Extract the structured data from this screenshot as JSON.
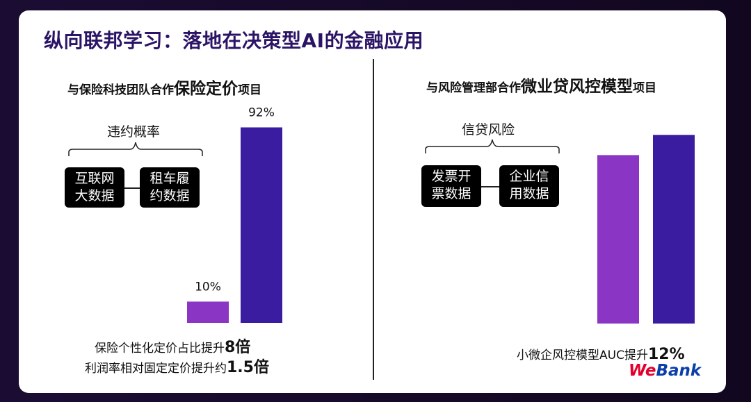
{
  "title": "纵向联邦学习：落地在决策型AI的金融应用",
  "left": {
    "heading_prefix": "与保险科技团队合作",
    "heading_big": "保险定价",
    "heading_suffix": "项目",
    "brace_label": "违约概率",
    "box1_line1": "互联网",
    "box1_line2": "大数据",
    "box2_line1": "租车履",
    "box2_line2": "约数据",
    "note1_prefix": "保险个性化定价占比提升",
    "note1_em": "8倍",
    "note2_prefix": "利润率相对固定定价提升约",
    "note2_em": "1.5倍"
  },
  "right": {
    "heading_prefix": "与风险管理部合作",
    "heading_big": "微业贷风控模型",
    "heading_suffix": "项目",
    "brace_label": "信贷风险",
    "box1_line1": "发票开",
    "box1_line2": "票数据",
    "box2_line1": "企业信",
    "box2_line2": "用数据",
    "note_prefix": "小微企风控模型AUC提升",
    "note_em": "12%"
  },
  "logo": {
    "we": "We",
    "bank": "Bank"
  },
  "colors": {
    "bar_light": "#8a35c4",
    "bar_dark": "#3a1ca0",
    "title": "#2b1466"
  },
  "chart_data": [
    {
      "type": "bar",
      "categories": [
        "",
        ""
      ],
      "values": [
        10,
        92
      ],
      "data_labels": [
        "10%",
        "92%"
      ],
      "colors": [
        "#8a35c4",
        "#3a1ca0"
      ],
      "ylim": [
        0,
        100
      ]
    },
    {
      "type": "bar",
      "categories": [
        "",
        ""
      ],
      "values": [
        100,
        112
      ],
      "data_labels": [
        "",
        ""
      ],
      "colors": [
        "#8a35c4",
        "#3a1ca0"
      ],
      "ylim": [
        0,
        115
      ]
    }
  ]
}
